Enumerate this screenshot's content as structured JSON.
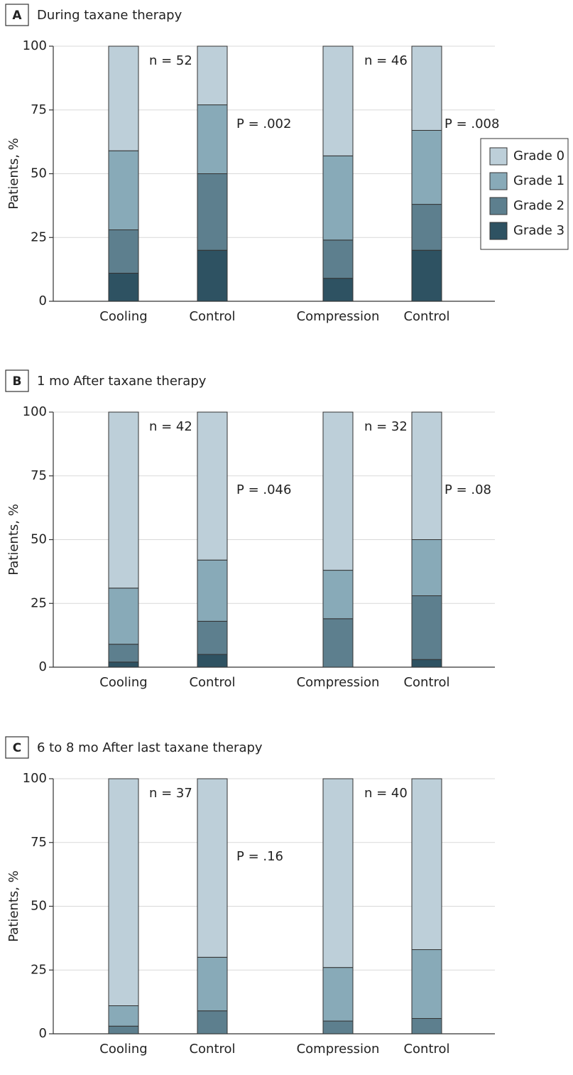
{
  "chart_data": [
    {
      "type": "stacked-bar",
      "panel": "A",
      "title": "During taxane therapy",
      "y_label": "Patients, %",
      "categories": [
        "Cooling",
        "Control",
        "Compression",
        "Control"
      ],
      "ylim": [
        0,
        100
      ],
      "yticks": [
        0,
        25,
        50,
        75,
        100
      ],
      "grid": true,
      "legend": "right",
      "annotations": [
        "n = 52",
        "P = .002",
        "n = 46",
        "P = .008"
      ],
      "series": [
        {
          "name": "Grade 0",
          "color": "#bdcfd9",
          "values": [
            41,
            23,
            43,
            33
          ]
        },
        {
          "name": "Grade 1",
          "color": "#88aab8",
          "values": [
            31,
            27,
            33,
            29
          ]
        },
        {
          "name": "Grade 2",
          "color": "#5d7f8e",
          "values": [
            17,
            30,
            15,
            18
          ]
        },
        {
          "name": "Grade 3",
          "color": "#2e5262",
          "values": [
            11,
            20,
            9,
            20
          ]
        }
      ]
    },
    {
      "type": "stacked-bar",
      "panel": "B",
      "title": "1 mo After taxane therapy",
      "y_label": "Patients, %",
      "categories": [
        "Cooling",
        "Control",
        "Compression",
        "Control"
      ],
      "ylim": [
        0,
        100
      ],
      "yticks": [
        0,
        25,
        50,
        75,
        100
      ],
      "grid": true,
      "annotations": [
        "n = 42",
        "P = .046",
        "n = 32",
        "P = .08"
      ],
      "series": [
        {
          "name": "Grade 0",
          "color": "#bdcfd9",
          "values": [
            69,
            58,
            62,
            50
          ]
        },
        {
          "name": "Grade 1",
          "color": "#88aab8",
          "values": [
            22,
            24,
            19,
            22
          ]
        },
        {
          "name": "Grade 2",
          "color": "#5d7f8e",
          "values": [
            7,
            13,
            19,
            25
          ]
        },
        {
          "name": "Grade 3",
          "color": "#2e5262",
          "values": [
            2,
            5,
            0,
            3
          ]
        }
      ]
    },
    {
      "type": "stacked-bar",
      "panel": "C",
      "title": "6 to 8 mo After last taxane therapy",
      "y_label": "Patients, %",
      "categories": [
        "Cooling",
        "Control",
        "Compression",
        "Control"
      ],
      "ylim": [
        0,
        100
      ],
      "yticks": [
        0,
        25,
        50,
        75,
        100
      ],
      "grid": true,
      "annotations": [
        "n = 37",
        "P = .16",
        "n = 40"
      ],
      "series": [
        {
          "name": "Grade 0",
          "color": "#bdcfd9",
          "values": [
            89,
            70,
            74,
            67
          ]
        },
        {
          "name": "Grade 1",
          "color": "#88aab8",
          "values": [
            8,
            21,
            21,
            27
          ]
        },
        {
          "name": "Grade 2",
          "color": "#5d7f8e",
          "values": [
            3,
            9,
            5,
            6
          ]
        },
        {
          "name": "Grade 3",
          "color": "#2e5262",
          "values": [
            0,
            0,
            0,
            0
          ]
        }
      ]
    }
  ]
}
